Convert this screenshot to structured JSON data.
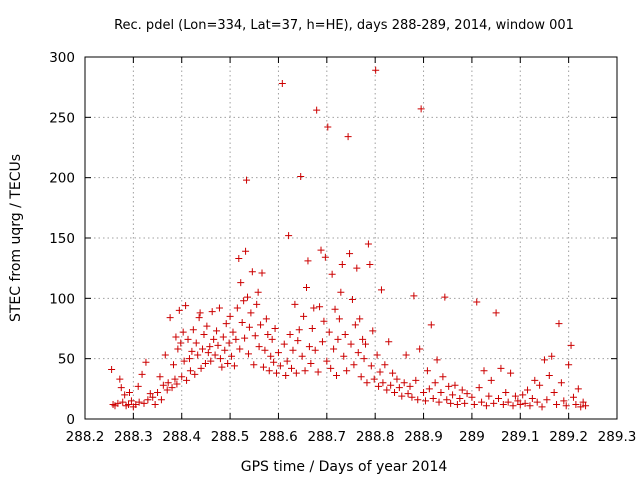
{
  "chart_data": {
    "type": "scatter",
    "title": "Rec. pdel (Lon=334, Lat=37, h=HE), days 288-289, 2014, window 001",
    "xlabel": "GPS time / Days of year 2014",
    "ylabel": "STEC from uqrg / TECUs",
    "xlim": [
      288.2,
      289.3
    ],
    "ylim": [
      0,
      300
    ],
    "xticks": [
      288.2,
      288.3,
      288.4,
      288.5,
      288.6,
      288.7,
      288.8,
      288.9,
      289,
      289.1,
      289.2,
      289.3
    ],
    "xtick_labels": [
      "288.2",
      "288.3",
      "288.4",
      "288.5",
      "288.6",
      "288.7",
      "288.8",
      "288.9",
      "289",
      "289.1",
      "289.2",
      "289.3"
    ],
    "yticks": [
      0,
      50,
      100,
      150,
      200,
      250,
      300
    ],
    "ytick_labels": [
      "0",
      "50",
      "100",
      "150",
      "200",
      "250",
      "300"
    ],
    "grid": true,
    "marker": "+",
    "marker_color": "#cc0000",
    "series": [
      {
        "name": "STEC",
        "points": [
          [
            288.255,
            41
          ],
          [
            288.258,
            12
          ],
          [
            288.262,
            11
          ],
          [
            288.268,
            13
          ],
          [
            288.272,
            33
          ],
          [
            288.275,
            26
          ],
          [
            288.278,
            14
          ],
          [
            288.282,
            20
          ],
          [
            288.285,
            11
          ],
          [
            288.29,
            12
          ],
          [
            288.292,
            22
          ],
          [
            288.296,
            15
          ],
          [
            288.3,
            10
          ],
          [
            288.305,
            12
          ],
          [
            288.31,
            27
          ],
          [
            288.312,
            14
          ],
          [
            288.318,
            37
          ],
          [
            288.322,
            13
          ],
          [
            288.326,
            47
          ],
          [
            288.33,
            16
          ],
          [
            288.335,
            21
          ],
          [
            288.34,
            18
          ],
          [
            288.345,
            12
          ],
          [
            288.35,
            22
          ],
          [
            288.355,
            35
          ],
          [
            288.358,
            16
          ],
          [
            288.362,
            28
          ],
          [
            288.366,
            53
          ],
          [
            288.37,
            24
          ],
          [
            288.372,
            30
          ],
          [
            288.376,
            84
          ],
          [
            288.38,
            26
          ],
          [
            288.383,
            45
          ],
          [
            288.386,
            33
          ],
          [
            288.388,
            68
          ],
          [
            288.39,
            29
          ],
          [
            288.392,
            58
          ],
          [
            288.395,
            90
          ],
          [
            288.398,
            63
          ],
          [
            288.4,
            35
          ],
          [
            288.403,
            72
          ],
          [
            288.405,
            48
          ],
          [
            288.408,
            94
          ],
          [
            288.41,
            32
          ],
          [
            288.413,
            66
          ],
          [
            288.416,
            50
          ],
          [
            288.418,
            40
          ],
          [
            288.421,
            56
          ],
          [
            288.424,
            74
          ],
          [
            288.427,
            37
          ],
          [
            288.43,
            63
          ],
          [
            288.433,
            53
          ],
          [
            288.436,
            84
          ],
          [
            288.438,
            88
          ],
          [
            288.44,
            42
          ],
          [
            288.443,
            58
          ],
          [
            288.446,
            70
          ],
          [
            288.449,
            46
          ],
          [
            288.452,
            77
          ],
          [
            288.455,
            55
          ],
          [
            288.458,
            60
          ],
          [
            288.46,
            48
          ],
          [
            288.463,
            89
          ],
          [
            288.466,
            66
          ],
          [
            288.469,
            53
          ],
          [
            288.472,
            73
          ],
          [
            288.475,
            61
          ],
          [
            288.478,
            92
          ],
          [
            288.48,
            50
          ],
          [
            288.483,
            43
          ],
          [
            288.486,
            68
          ],
          [
            288.489,
            57
          ],
          [
            288.492,
            79
          ],
          [
            288.495,
            46
          ],
          [
            288.498,
            63
          ],
          [
            288.5,
            85
          ],
          [
            288.503,
            52
          ],
          [
            288.506,
            72
          ],
          [
            288.509,
            44
          ],
          [
            288.512,
            66
          ],
          [
            288.515,
            92
          ],
          [
            288.518,
            133
          ],
          [
            288.52,
            58
          ],
          [
            288.522,
            113
          ],
          [
            288.525,
            80
          ],
          [
            288.528,
            98
          ],
          [
            288.53,
            67
          ],
          [
            288.532,
            139
          ],
          [
            288.534,
            198
          ],
          [
            288.536,
            101
          ],
          [
            288.538,
            54
          ],
          [
            288.54,
            76
          ],
          [
            288.543,
            88
          ],
          [
            288.546,
            122
          ],
          [
            288.549,
            45
          ],
          [
            288.552,
            69
          ],
          [
            288.555,
            95
          ],
          [
            288.558,
            105
          ],
          [
            288.56,
            60
          ],
          [
            288.563,
            78
          ],
          [
            288.566,
            121
          ],
          [
            288.569,
            43
          ],
          [
            288.572,
            57
          ],
          [
            288.575,
            83
          ],
          [
            288.578,
            70
          ],
          [
            288.581,
            40
          ],
          [
            288.584,
            52
          ],
          [
            288.587,
            66
          ],
          [
            288.59,
            47
          ],
          [
            288.593,
            75
          ],
          [
            288.596,
            38
          ],
          [
            288.6,
            55
          ],
          [
            288.604,
            44
          ],
          [
            288.608,
            278
          ],
          [
            288.612,
            62
          ],
          [
            288.615,
            36
          ],
          [
            288.618,
            48
          ],
          [
            288.621,
            152
          ],
          [
            288.624,
            70
          ],
          [
            288.627,
            42
          ],
          [
            288.63,
            57
          ],
          [
            288.634,
            95
          ],
          [
            288.637,
            38
          ],
          [
            288.64,
            65
          ],
          [
            288.643,
            74
          ],
          [
            288.646,
            201
          ],
          [
            288.649,
            52
          ],
          [
            288.652,
            85
          ],
          [
            288.655,
            40
          ],
          [
            288.658,
            109
          ],
          [
            288.661,
            131
          ],
          [
            288.664,
            60
          ],
          [
            288.667,
            46
          ],
          [
            288.67,
            75
          ],
          [
            288.673,
            92
          ],
          [
            288.676,
            57
          ],
          [
            288.679,
            256
          ],
          [
            288.682,
            39
          ],
          [
            288.685,
            93
          ],
          [
            288.688,
            140
          ],
          [
            288.691,
            64
          ],
          [
            288.694,
            81
          ],
          [
            288.697,
            134
          ],
          [
            288.7,
            48
          ],
          [
            288.702,
            242
          ],
          [
            288.705,
            72
          ],
          [
            288.708,
            42
          ],
          [
            288.711,
            120
          ],
          [
            288.714,
            58
          ],
          [
            288.717,
            91
          ],
          [
            288.72,
            36
          ],
          [
            288.723,
            66
          ],
          [
            288.726,
            83
          ],
          [
            288.729,
            105
          ],
          [
            288.732,
            128
          ],
          [
            288.735,
            52
          ],
          [
            288.738,
            70
          ],
          [
            288.741,
            40
          ],
          [
            288.744,
            234
          ],
          [
            288.747,
            137
          ],
          [
            288.75,
            62
          ],
          [
            288.753,
            99
          ],
          [
            288.756,
            45
          ],
          [
            288.759,
            78
          ],
          [
            288.762,
            125
          ],
          [
            288.765,
            55
          ],
          [
            288.768,
            83
          ],
          [
            288.771,
            35
          ],
          [
            288.774,
            66
          ],
          [
            288.777,
            50
          ],
          [
            288.78,
            62
          ],
          [
            288.783,
            30
          ],
          [
            288.786,
            145
          ],
          [
            288.789,
            128
          ],
          [
            288.792,
            44
          ],
          [
            288.795,
            73
          ],
          [
            288.798,
            33
          ],
          [
            288.801,
            289
          ],
          [
            288.804,
            53
          ],
          [
            288.807,
            27
          ],
          [
            288.81,
            39
          ],
          [
            288.813,
            107
          ],
          [
            288.816,
            30
          ],
          [
            288.82,
            45
          ],
          [
            288.824,
            24
          ],
          [
            288.828,
            64
          ],
          [
            288.832,
            28
          ],
          [
            288.836,
            38
          ],
          [
            288.84,
            22
          ],
          [
            288.845,
            33
          ],
          [
            288.85,
            26
          ],
          [
            288.855,
            19
          ],
          [
            288.86,
            30
          ],
          [
            288.864,
            53
          ],
          [
            288.868,
            21
          ],
          [
            288.872,
            27
          ],
          [
            288.876,
            18
          ],
          [
            288.88,
            102
          ],
          [
            288.884,
            32
          ],
          [
            288.888,
            16
          ],
          [
            288.892,
            58
          ],
          [
            288.895,
            257
          ],
          [
            288.9,
            22
          ],
          [
            288.904,
            15
          ],
          [
            288.908,
            40
          ],
          [
            288.912,
            25
          ],
          [
            288.916,
            78
          ],
          [
            288.92,
            17
          ],
          [
            288.924,
            30
          ],
          [
            288.928,
            49
          ],
          [
            288.932,
            14
          ],
          [
            288.936,
            22
          ],
          [
            288.94,
            35
          ],
          [
            288.944,
            101
          ],
          [
            288.948,
            16
          ],
          [
            288.952,
            27
          ],
          [
            288.956,
            13
          ],
          [
            288.96,
            20
          ],
          [
            288.965,
            28
          ],
          [
            288.97,
            12
          ],
          [
            288.975,
            17
          ],
          [
            288.98,
            24
          ],
          [
            288.985,
            13
          ],
          [
            288.99,
            21
          ],
          [
            289.0,
            18
          ],
          [
            289.005,
            12
          ],
          [
            289.01,
            97
          ],
          [
            289.015,
            26
          ],
          [
            289.02,
            14
          ],
          [
            289.025,
            40
          ],
          [
            289.03,
            11
          ],
          [
            289.035,
            19
          ],
          [
            289.04,
            32
          ],
          [
            289.045,
            13
          ],
          [
            289.05,
            88
          ],
          [
            289.055,
            17
          ],
          [
            289.06,
            42
          ],
          [
            289.065,
            12
          ],
          [
            289.07,
            22
          ],
          [
            289.075,
            14
          ],
          [
            289.08,
            38
          ],
          [
            289.085,
            11
          ],
          [
            289.09,
            19
          ],
          [
            289.095,
            15
          ],
          [
            289.1,
            12
          ],
          [
            289.105,
            20
          ],
          [
            289.11,
            13
          ],
          [
            289.115,
            24
          ],
          [
            289.12,
            11
          ],
          [
            289.125,
            17
          ],
          [
            289.13,
            32
          ],
          [
            289.135,
            14
          ],
          [
            289.14,
            28
          ],
          [
            289.145,
            10
          ],
          [
            289.15,
            49
          ],
          [
            289.155,
            16
          ],
          [
            289.16,
            36
          ],
          [
            289.165,
            52
          ],
          [
            289.17,
            22
          ],
          [
            289.175,
            12
          ],
          [
            289.18,
            79
          ],
          [
            289.185,
            30
          ],
          [
            289.19,
            15
          ],
          [
            289.195,
            11
          ],
          [
            289.2,
            45
          ],
          [
            289.205,
            61
          ],
          [
            289.21,
            18
          ],
          [
            289.215,
            12
          ],
          [
            289.22,
            25
          ],
          [
            289.225,
            10
          ],
          [
            289.23,
            14
          ],
          [
            289.235,
            11
          ]
        ]
      }
    ]
  }
}
